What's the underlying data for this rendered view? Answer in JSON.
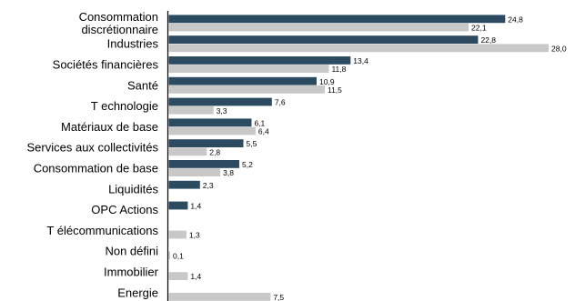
{
  "chart_data": {
    "type": "bar",
    "orientation": "horizontal",
    "categories": [
      [
        "Consommation",
        "discrétionnaire"
      ],
      [
        "Industries"
      ],
      [
        "Sociétés financières"
      ],
      [
        "Santé"
      ],
      [
        "T echnologie"
      ],
      [
        "Matériaux de base"
      ],
      [
        "Services aux collectivités"
      ],
      [
        "Consommation de base"
      ],
      [
        "Liquidités"
      ],
      [
        "OPC Actions"
      ],
      [
        "T élécommunications"
      ],
      [
        "Non défini"
      ],
      [
        "Immobilier"
      ],
      [
        "Energie"
      ]
    ],
    "series": [
      {
        "color": "#2c4b61",
        "values": [
          24.8,
          22.8,
          13.4,
          10.9,
          7.6,
          6.1,
          5.5,
          5.2,
          2.3,
          1.4,
          null,
          null,
          null,
          null
        ],
        "labels": [
          "24,8",
          "22,8",
          "13,4",
          "10,9",
          "7,6",
          "6,1",
          "5,5",
          "5,2",
          "2,3",
          "1,4",
          "",
          "",
          "",
          ""
        ]
      },
      {
        "color": "#c8c8c8",
        "values": [
          22.1,
          28.0,
          11.8,
          11.5,
          3.3,
          6.4,
          2.8,
          3.8,
          null,
          null,
          1.3,
          0.1,
          1.4,
          7.5
        ],
        "labels": [
          "22,1",
          "28,0",
          "11,8",
          "11,5",
          "3,3",
          "6,4",
          "2,8",
          "3,8",
          "",
          "",
          "1,3",
          "0,1",
          "1,4",
          "7,5"
        ]
      }
    ],
    "xlim": [
      0,
      28
    ],
    "grid": false,
    "legend": "none"
  }
}
